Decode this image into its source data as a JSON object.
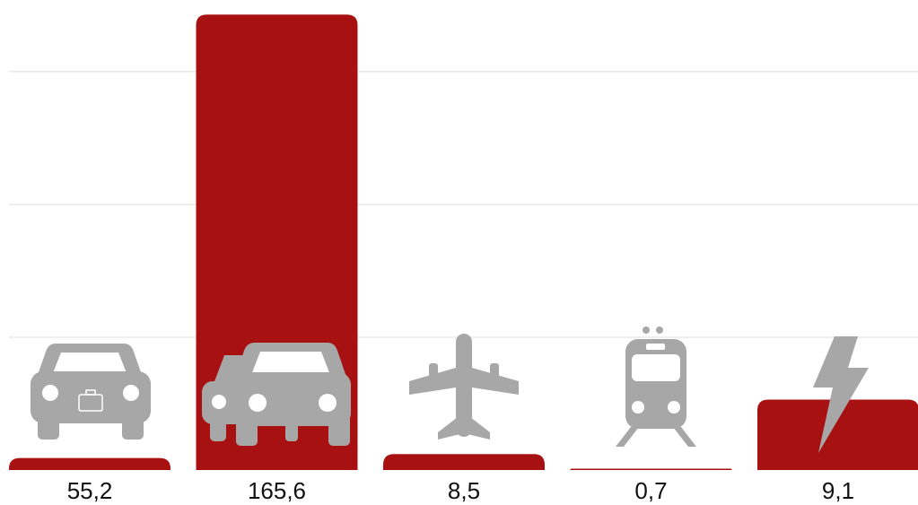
{
  "chart_data": {
    "type": "bar",
    "categories": [
      "55,2",
      "165,6",
      "8,5",
      "0,7",
      "9,1"
    ],
    "values": [
      0.09,
      3.43,
      0.12,
      0.01,
      0.53
    ],
    "color": "#a81111",
    "ylim": [
      0,
      3.54
    ],
    "yticks": [
      1,
      2,
      3
    ],
    "grid": true
  }
}
